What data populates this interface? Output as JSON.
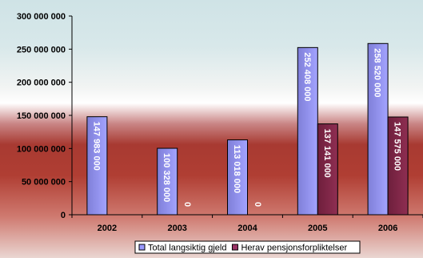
{
  "chart_data": {
    "type": "bar",
    "title": "",
    "xlabel": "",
    "ylabel": "",
    "categories": [
      "2002",
      "2003",
      "2004",
      "2005",
      "2006"
    ],
    "series": [
      {
        "name": "Total langsiktig gjeld",
        "values": [
          147983000,
          100328000,
          113018000,
          252408000,
          258520000
        ],
        "labels": [
          "147 983 000",
          "100 328 000",
          "113 018 000",
          "252 408 000",
          "258 520 000"
        ],
        "color": "#9999ff"
      },
      {
        "name": "Herav pensjonsforpliktelser",
        "values": [
          null,
          0,
          0,
          137141000,
          147575000
        ],
        "labels": [
          "",
          "0",
          "0",
          "137 141 000",
          "147 575 000"
        ],
        "color": "#993366"
      }
    ],
    "ylim": [
      0,
      300000000
    ],
    "yticks": [
      0,
      50000000,
      100000000,
      150000000,
      200000000,
      250000000,
      300000000
    ],
    "ytick_labels": [
      "0",
      "50 000 000",
      "100 000 000",
      "150 000 000",
      "200 000 000",
      "250 000 000",
      "300 000 000"
    ],
    "grid": false,
    "legend_position": "bottom"
  }
}
